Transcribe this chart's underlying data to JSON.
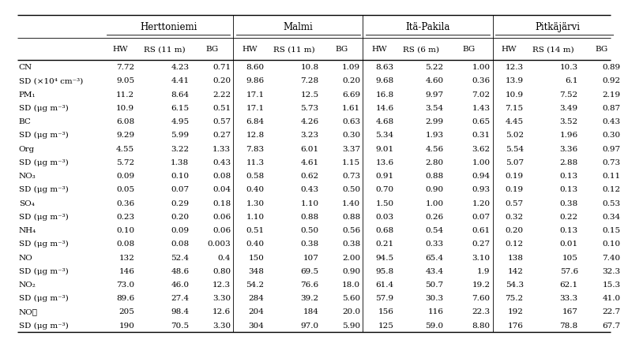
{
  "sites": [
    "Herttoniemi",
    "Malmi",
    "Itä-Pakila",
    "Pitkäjärvi"
  ],
  "subheaders": [
    "HW",
    "RS (11 m)",
    "BG",
    "HW",
    "RS (11 m)",
    "BG",
    "HW",
    "RS (6 m)",
    "BG",
    "HW",
    "RS (14 m)",
    "BG"
  ],
  "row_labels": [
    "CN",
    "SD (×10⁴ cm⁻³)",
    "PM₁",
    "SD (μg m⁻³)",
    "BC",
    "SD (μg m⁻³)",
    "Org",
    "SD (μg m⁻³)",
    "NO₃",
    "SD (μg m⁻³)",
    "SO₄",
    "SD (μg m⁻³)",
    "NH₄",
    "SD (μg m⁻³)",
    "NO",
    "SD (μg m⁻³)",
    "NO₂",
    "SD (μg m⁻³)",
    "NOᵯ",
    "SD (μg m⁻³)"
  ],
  "data": [
    [
      "7.72",
      "4.23",
      "0.71",
      "8.60",
      "10.8",
      "1.09",
      "8.63",
      "5.22",
      "1.00",
      "12.3",
      "10.3",
      "0.89"
    ],
    [
      "9.05",
      "4.41",
      "0.20",
      "9.86",
      "7.28",
      "0.20",
      "9.68",
      "4.60",
      "0.36",
      "13.9",
      "6.1",
      "0.92"
    ],
    [
      "11.2",
      "8.64",
      "2.22",
      "17.1",
      "12.5",
      "6.69",
      "16.8",
      "9.97",
      "7.02",
      "10.9",
      "7.52",
      "2.19"
    ],
    [
      "10.9",
      "6.15",
      "0.51",
      "17.1",
      "5.73",
      "1.61",
      "14.6",
      "3.54",
      "1.43",
      "7.15",
      "3.49",
      "0.87"
    ],
    [
      "6.08",
      "4.95",
      "0.57",
      "6.84",
      "4.26",
      "0.63",
      "4.68",
      "2.99",
      "0.65",
      "4.45",
      "3.52",
      "0.43"
    ],
    [
      "9.29",
      "5.99",
      "0.27",
      "12.8",
      "3.23",
      "0.30",
      "5.34",
      "1.93",
      "0.31",
      "5.02",
      "1.96",
      "0.30"
    ],
    [
      "4.55",
      "3.22",
      "1.33",
      "7.83",
      "6.01",
      "3.37",
      "9.01",
      "4.56",
      "3.62",
      "5.54",
      "3.36",
      "0.97"
    ],
    [
      "5.72",
      "1.38",
      "0.43",
      "11.3",
      "4.61",
      "1.15",
      "13.6",
      "2.80",
      "1.00",
      "5.07",
      "2.88",
      "0.73"
    ],
    [
      "0.09",
      "0.10",
      "0.08",
      "0.58",
      "0.62",
      "0.73",
      "0.91",
      "0.88",
      "0.94",
      "0.19",
      "0.13",
      "0.11"
    ],
    [
      "0.05",
      "0.07",
      "0.04",
      "0.40",
      "0.43",
      "0.50",
      "0.70",
      "0.90",
      "0.93",
      "0.19",
      "0.13",
      "0.12"
    ],
    [
      "0.36",
      "0.29",
      "0.18",
      "1.30",
      "1.10",
      "1.40",
      "1.50",
      "1.00",
      "1.20",
      "0.57",
      "0.38",
      "0.53"
    ],
    [
      "0.23",
      "0.20",
      "0.06",
      "1.10",
      "0.88",
      "0.88",
      "0.03",
      "0.26",
      "0.07",
      "0.32",
      "0.22",
      "0.34"
    ],
    [
      "0.10",
      "0.09",
      "0.06",
      "0.51",
      "0.50",
      "0.56",
      "0.68",
      "0.54",
      "0.61",
      "0.20",
      "0.13",
      "0.15"
    ],
    [
      "0.08",
      "0.08",
      "0.003",
      "0.40",
      "0.38",
      "0.38",
      "0.21",
      "0.33",
      "0.27",
      "0.12",
      "0.01",
      "0.10"
    ],
    [
      "132",
      "52.4",
      "0.4",
      "150",
      "107",
      "2.00",
      "94.5",
      "65.4",
      "3.10",
      "138",
      "105",
      "7.40"
    ],
    [
      "146",
      "48.6",
      "0.80",
      "348",
      "69.5",
      "0.90",
      "95.8",
      "43.4",
      "1.9",
      "142",
      "57.6",
      "32.3"
    ],
    [
      "73.0",
      "46.0",
      "12.3",
      "54.2",
      "76.6",
      "18.0",
      "61.4",
      "50.7",
      "19.2",
      "54.3",
      "62.1",
      "15.3"
    ],
    [
      "89.6",
      "27.4",
      "3.30",
      "284",
      "39.2",
      "5.60",
      "57.9",
      "30.3",
      "7.60",
      "75.2",
      "33.3",
      "41.0"
    ],
    [
      "205",
      "98.4",
      "12.6",
      "204",
      "184",
      "20.0",
      "156",
      "116",
      "22.3",
      "192",
      "167",
      "22.7"
    ],
    [
      "190",
      "70.5",
      "3.30",
      "304",
      "97.0",
      "5.90",
      "125",
      "59.0",
      "8.80",
      "176",
      "78.8",
      "67.7"
    ]
  ],
  "bg_color": "#ffffff",
  "text_color": "#000000",
  "line_color": "#000000",
  "fontsize": 7.5,
  "header_fontsize": 8.5
}
